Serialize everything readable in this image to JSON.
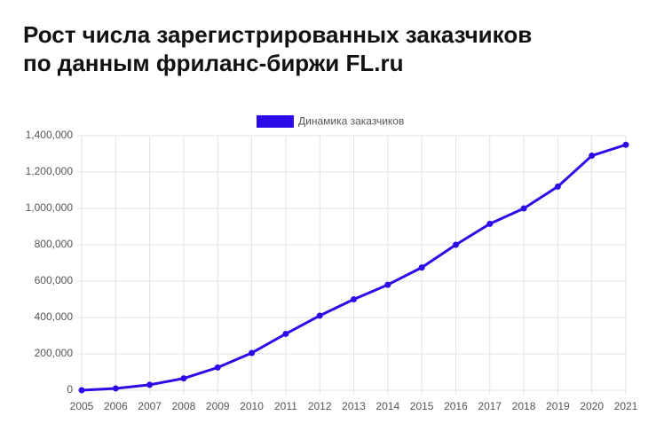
{
  "chart_data": {
    "type": "line",
    "title": [
      "Рост числа зарегистрированных заказчиков",
      "по данным фриланс-биржи FL.ru"
    ],
    "categories": [
      "2005",
      "2006",
      "2007",
      "2008",
      "2009",
      "2010",
      "2011",
      "2012",
      "2013",
      "2014",
      "2015",
      "2016",
      "2017",
      "2018",
      "2019",
      "2020",
      "2021"
    ],
    "series": [
      {
        "name": "Динамика заказчиков",
        "color": "#2b0ce8",
        "values": [
          0,
          10000,
          30000,
          65000,
          125000,
          205000,
          310000,
          410000,
          500000,
          580000,
          675000,
          800000,
          915000,
          1000000,
          1120000,
          1290000,
          1350000
        ]
      }
    ],
    "ylim": [
      0,
      1400000
    ],
    "yticks": [
      0,
      {
        "value": 200000,
        "label": "200,000"
      },
      {
        "value": 400000,
        "label": "400,000"
      },
      {
        "value": 600000,
        "label": "600,000"
      },
      {
        "value": 800000,
        "label": "800,000"
      },
      {
        "value": 1000000,
        "label": "1,000,000"
      },
      {
        "value": 1200000,
        "label": "1,200,000"
      },
      {
        "value": 1400000,
        "label": "1,400,000"
      }
    ],
    "grid": true,
    "legend": "top"
  }
}
